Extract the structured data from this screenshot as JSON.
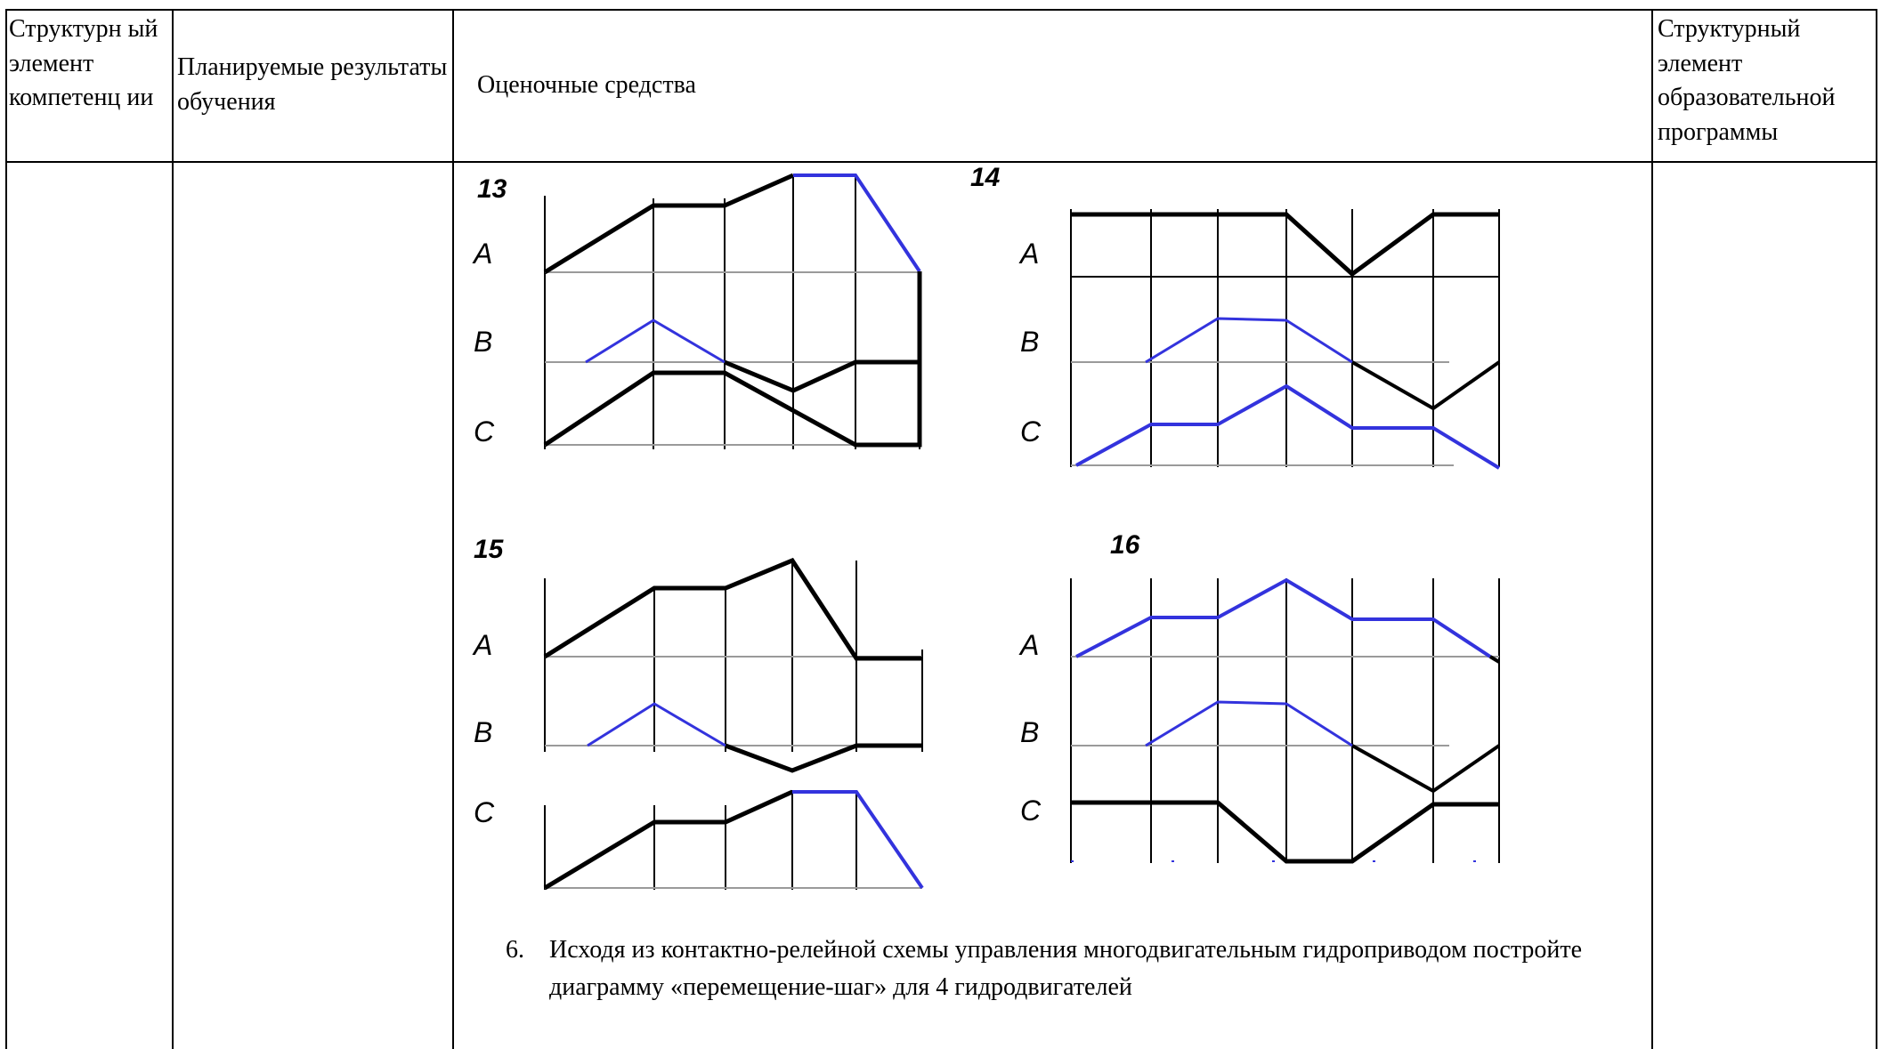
{
  "header": {
    "col1": "Структурн ый элемент компетенц ии",
    "col2": "Планируемые результаты обучения",
    "col3": "Оценочные средства",
    "col4": "Структурный элемент образовательной программы"
  },
  "diagrams": [
    {
      "number": "13",
      "labels": [
        "A",
        "B",
        "C"
      ]
    },
    {
      "number": "14",
      "labels": [
        "A",
        "B",
        "C"
      ]
    },
    {
      "number": "15",
      "labels": [
        "A",
        "B",
        "C"
      ]
    },
    {
      "number": "16",
      "labels": [
        "A",
        "B",
        "C"
      ]
    }
  ],
  "task": {
    "number": "6.",
    "text": "Исходя из контактно-релейной схемы управления многодвигательным гидроприводом по­стройте диаграмму «перемещение-шаг» для 4 гидродвигателей"
  },
  "colors": {
    "black_trace": "#000000",
    "blue_trace": "#3333dd",
    "axis_gray": "#9a9a9a"
  }
}
